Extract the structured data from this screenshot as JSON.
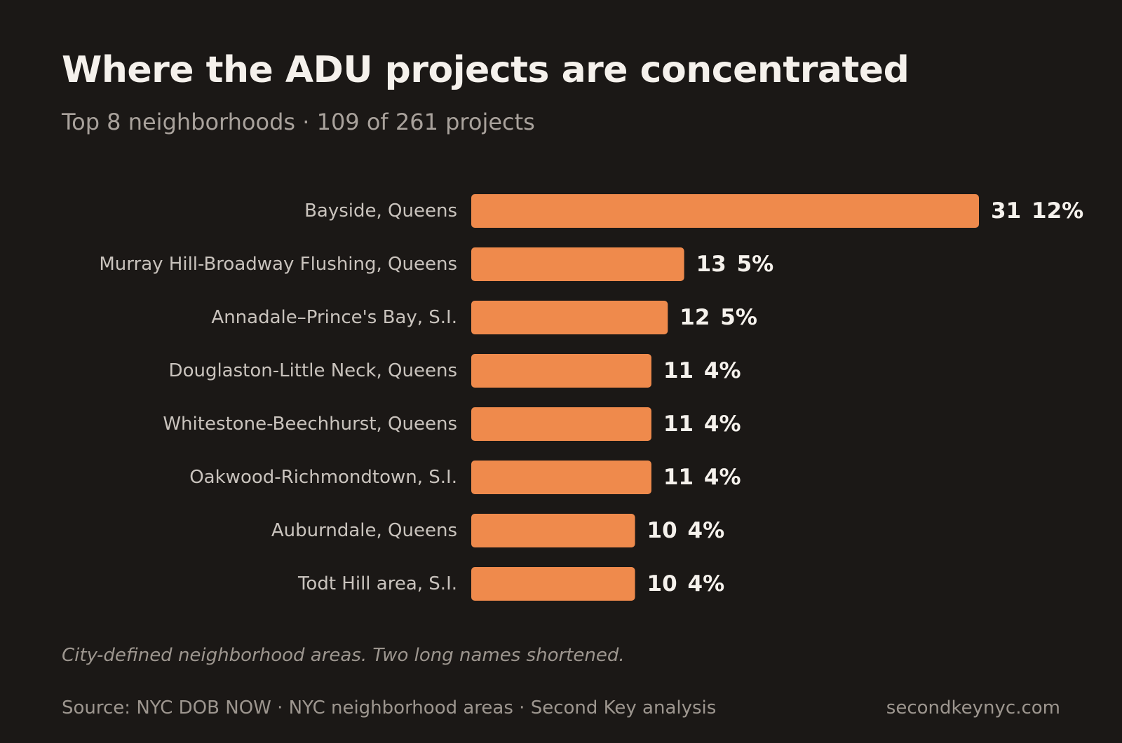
{
  "chart_data": {
    "type": "bar",
    "orientation": "horizontal",
    "title": "Where the ADU projects are concentrated",
    "subtitle": "Top 8 neighborhoods · 109 of 261 projects",
    "categories": [
      "Bayside, Queens",
      "Murray Hill-Broadway Flushing, Queens",
      "Annadale–Prince's Bay, S.I.",
      "Douglaston-Little Neck, Queens",
      "Whitestone-Beechhurst, Queens",
      "Oakwood-Richmondtown, S.I.",
      "Auburndale, Queens",
      "Todt Hill area, S.I."
    ],
    "values": [
      31,
      13,
      12,
      11,
      11,
      11,
      10,
      10
    ],
    "percent_labels": [
      "12%",
      "5%",
      "5%",
      "4%",
      "4%",
      "4%",
      "4%",
      "4%"
    ],
    "bar_color": "#ef8a4c",
    "grid": false,
    "legend": "none"
  },
  "footer": {
    "note": "City-defined neighborhood areas. Two long names shortened.",
    "source": "Source: NYC DOB NOW · NYC neighborhood areas · Second Key analysis",
    "site": "secondkeynyc.com"
  }
}
